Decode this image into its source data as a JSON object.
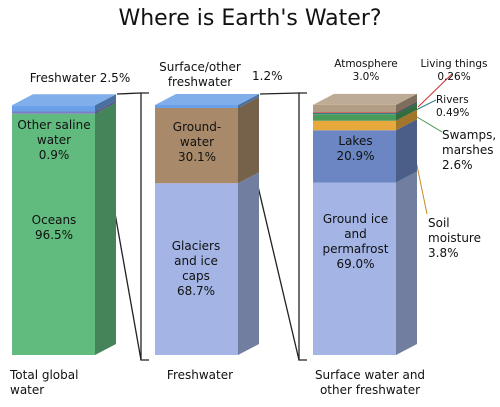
{
  "title": "Where is Earth's Water?",
  "chart_data": [
    {
      "type": "bar",
      "stacked": true,
      "xlabel": "Total global water",
      "ylim": [
        0,
        100
      ],
      "series": [
        {
          "name": "Oceans",
          "color": "#62bb7e",
          "values": [
            96.5
          ],
          "value_labels": [
            "96.5%"
          ]
        },
        {
          "name": "Other saline water",
          "color": "#7b7fc4",
          "values": [
            0.9
          ],
          "value_labels": [
            "0.9%"
          ]
        },
        {
          "name": "Freshwater",
          "color": "#6aa0e8",
          "values": [
            2.5
          ],
          "value_labels": [
            "2.5%"
          ]
        }
      ]
    },
    {
      "type": "bar",
      "stacked": true,
      "xlabel": "Freshwater",
      "ylim": [
        0,
        100
      ],
      "series": [
        {
          "name": "Glaciers and ice caps",
          "color": "#a3b4e5",
          "values": [
            68.7
          ],
          "value_labels": [
            "68.7%"
          ]
        },
        {
          "name": "Ground-water",
          "color": "#a88a6a",
          "values": [
            30.1
          ],
          "value_labels": [
            "30.1%"
          ]
        },
        {
          "name": "Surface/other freshwater",
          "color": "#6aa0e8",
          "values": [
            1.2
          ],
          "value_labels": [
            "1.2%"
          ]
        }
      ]
    },
    {
      "type": "bar",
      "stacked": true,
      "xlabel": "Surface water and other freshwater",
      "ylim": [
        0,
        100
      ],
      "series": [
        {
          "name": "Ground ice and permafrost",
          "color": "#a3b4e5",
          "values": [
            69.0
          ],
          "value_labels": [
            "69.0%"
          ]
        },
        {
          "name": "Lakes",
          "color": "#6b86c2",
          "values": [
            20.9
          ],
          "value_labels": [
            "20.9%"
          ]
        },
        {
          "name": "Soil moisture",
          "color": "#e8a93c",
          "values": [
            3.8
          ],
          "value_labels": [
            "3.8%"
          ]
        },
        {
          "name": "Swamps, marshes",
          "color": "#4a9a5a",
          "values": [
            2.6
          ],
          "value_labels": [
            "2.6%"
          ]
        },
        {
          "name": "Rivers",
          "color": "#2f7f86",
          "values": [
            0.49
          ],
          "value_labels": [
            "0.49%"
          ]
        },
        {
          "name": "Living things",
          "color": "#d03030",
          "values": [
            0.26
          ],
          "value_labels": [
            "0.26%"
          ]
        },
        {
          "name": "Atmosphere",
          "color": "#b39c84",
          "values": [
            3.0
          ],
          "value_labels": [
            "3.0%"
          ]
        }
      ]
    }
  ]
}
